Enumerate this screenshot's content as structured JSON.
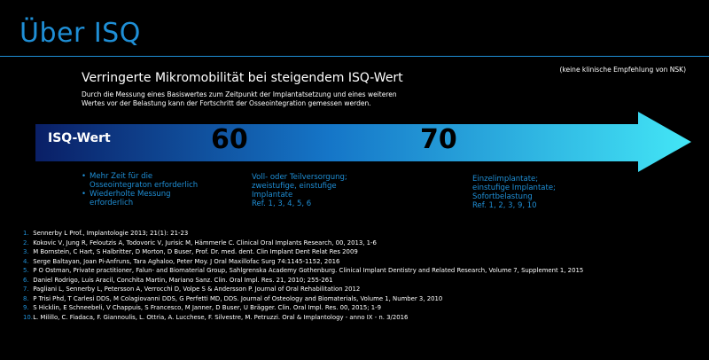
{
  "header": {
    "title": "Über ISQ",
    "note": "(keine klinische Empfehlung von NSK)"
  },
  "intro": {
    "subtitle": "Verringerte Mikromobilität bei steigendem ISQ-Wert",
    "description_line1": "Durch die Messung eines Basiswertes zum Zeitpunkt der Implantatsetzung und eines weiteren",
    "description_line2": "Wertes vor der Belastung kann der Fortschritt der Osseointegration gemessen werden."
  },
  "arrow": {
    "label": "ISQ-Wert",
    "value_1": "60",
    "value_2": "70",
    "colors": {
      "start": "#0a1f66",
      "middle": "#1576c8",
      "end": "#43e6f6"
    }
  },
  "columns": {
    "low": {
      "bullet_1_line1": "Mehr Zeit für die",
      "bullet_1_line2": "Osseointegraton erforderlich",
      "bullet_2_line1": "Wiederholte Messung",
      "bullet_2_line2": "erforderlich"
    },
    "mid": {
      "line1": "Voll- oder Teilversorgung;",
      "line2": "zweistufige, einstufige",
      "line3": "Implantate",
      "ref": "Ref. 1, 3, 4, 5, 6"
    },
    "high": {
      "line1": "Einzelimplantate;",
      "line2": "einstufige Implantate;",
      "line3": "Sofortbelastung",
      "ref": "Ref. 1, 2, 3, 9, 10"
    }
  },
  "references": [
    {
      "num": "1.",
      "text": "Sennerby L Prof., Implantologie 2013; 21(1): 21-23"
    },
    {
      "num": "2.",
      "text": "Kokovic V, Jung R, Feloutzis A, Todovoric V, Jurisic M, Hämmerle C. Clinical Oral Implants Research, 00, 2013, 1-6"
    },
    {
      "num": "3.",
      "text": "M Bornstein, C Hart, S Halbritter, D Morton, D Buser, Prof. Dr. med. dent. Clin Implant Dent Relat Res 2009"
    },
    {
      "num": "4.",
      "text": "Serge Baltayan, Joan Pi-Anfruns, Tara Aghaloo, Peter Moy. J Oral Maxillofac Surg 74:1145-1152, 2016"
    },
    {
      "num": "5.",
      "text": "P O Ostman, Private practitioner, Falun- and Biomaterial Group, Sahlgrenska Academy Gothenburg. Clinical Implant  Dentistry and Related Research, Volume 7, Supplement 1, 2015"
    },
    {
      "num": "6.",
      "text": "Daniel Rodrigo, Luis Aracil, Conchita Martin, Mariano Sanz. Clin. Oral Impl. Res. 21, 2010; 255-261"
    },
    {
      "num": "7.",
      "text": "Pagliani L, Sennerby L, Petersson A, Verrocchi D, Volpe S & Andersson P. Journal of Oral Rehabilitation 2012"
    },
    {
      "num": "8.",
      "text": "P Trisi Phd, T Carlesi DDS, M Colagiovanni DDS, G Perfetti MD, DDS. Journal of Osteology and Biomaterials, Volume 1, Number 3, 2010"
    },
    {
      "num": "9.",
      "text": "S Hicklin, E Schneebeli, V Chappuis, S Francesco, M Janner, D Buser, U Brägger. Clin. Oral Impl. Res. 00, 2015; 1-9"
    },
    {
      "num": "10.",
      "text": "L. Milillo, C. Fiadaca, F. Giannoulis, L. Ottria, A. Lucchese, F. Silvestre, M. Petruzzi. Oral & Implantology - anno IX - n. 3/2016"
    }
  ]
}
